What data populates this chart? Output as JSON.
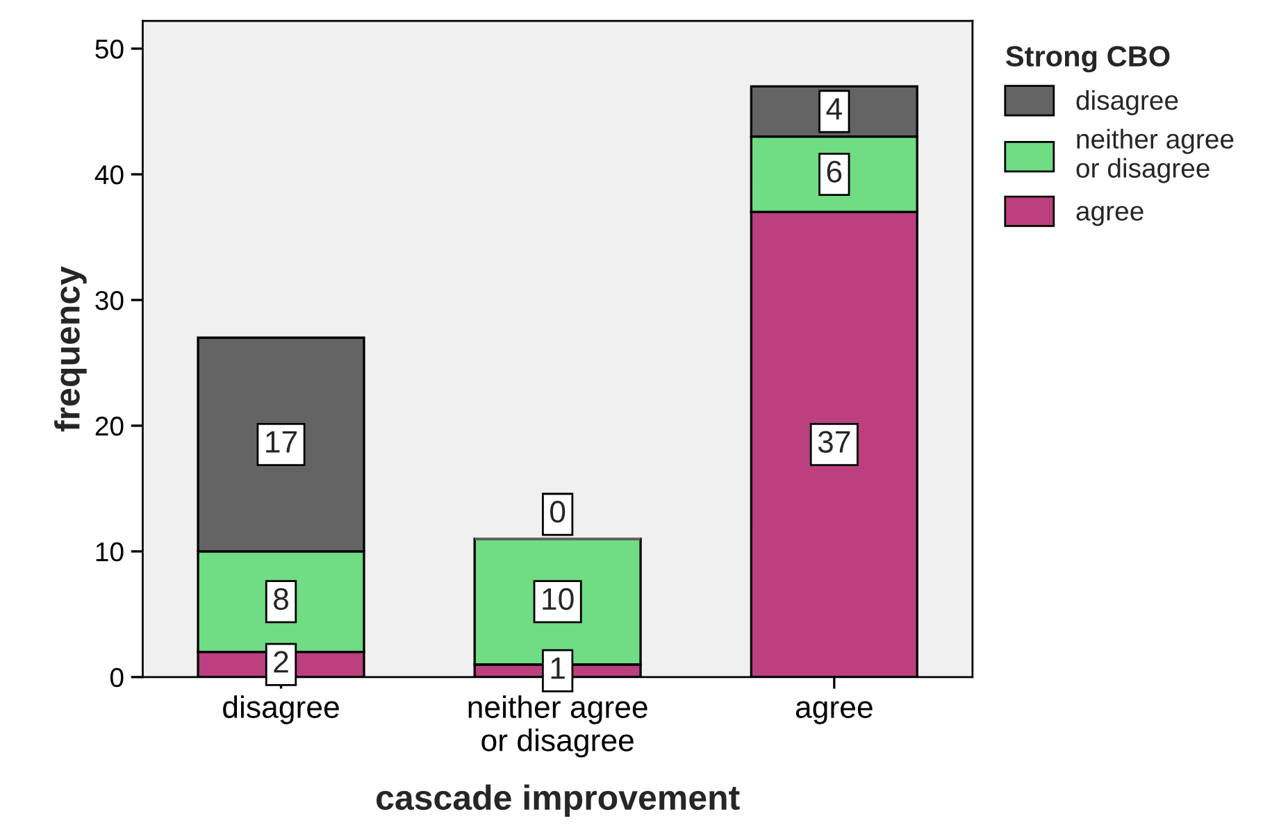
{
  "chart_data": {
    "type": "bar",
    "stacked": true,
    "xlabel": "cascade improvement",
    "ylabel": "frequency",
    "legend_title": "Strong CBO",
    "categories": [
      "disagree",
      "neither agree\nor disagree",
      "agree"
    ],
    "series": [
      {
        "name": "agree",
        "color": "#bc4080",
        "values": [
          2,
          1,
          37
        ]
      },
      {
        "name": "neither agree\nor disagree",
        "color": "#70dc84",
        "values": [
          8,
          10,
          6
        ]
      },
      {
        "name": "disagree",
        "color": "#646464",
        "values": [
          17,
          0,
          4
        ]
      }
    ],
    "ylim": [
      0,
      52.2
    ],
    "yticks": [
      0,
      10,
      20,
      30,
      40,
      50
    ],
    "data_labels": true,
    "legend": "top right",
    "grid": false
  }
}
